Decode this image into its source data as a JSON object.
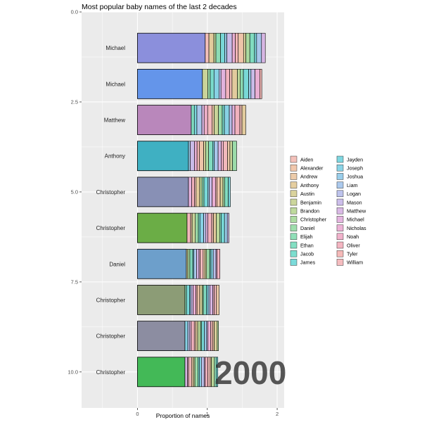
{
  "chart_data": {
    "type": "bar",
    "title": "Most popular baby names of the last 2 decades",
    "xlabel": "Proportion of names",
    "ylabel": "",
    "xlim": [
      -0.8,
      2.1
    ],
    "ylim": [
      0,
      11
    ],
    "x_ticks": [
      "0",
      "1",
      "2"
    ],
    "y_ticks": [
      "0.0",
      "2.5",
      "5.0",
      "7.5",
      "10.0"
    ],
    "legend_position": "right",
    "legend": [
      "Aiden",
      "Alexander",
      "Andrew",
      "Anthony",
      "Austin",
      "Benjamin",
      "Brandon",
      "Christopher",
      "Daniel",
      "Elijah",
      "Ethan",
      "Jacob",
      "James",
      "Jayden",
      "Joseph",
      "Joshua",
      "Liam",
      "Logan",
      "Mason",
      "Matthew",
      "Michael",
      "Nicholas",
      "Noah",
      "Oliver",
      "Tyler",
      "William"
    ],
    "bars": [
      {
        "rank": 1,
        "label": "Michael",
        "lead_value": 0.97,
        "total": 1.83,
        "color": "#8b8fdc"
      },
      {
        "rank": 2,
        "label": "Michael",
        "lead_value": 0.93,
        "total": 1.78,
        "color": "#6495ea"
      },
      {
        "rank": 3,
        "label": "Matthew",
        "lead_value": 0.77,
        "total": 1.55,
        "color": "#b987bb"
      },
      {
        "rank": 4,
        "label": "Anthony",
        "lead_value": 0.73,
        "total": 1.42,
        "color": "#3fb0c2"
      },
      {
        "rank": 5,
        "label": "Christopher",
        "lead_value": 0.73,
        "total": 1.33,
        "color": "#8890b5"
      },
      {
        "rank": 6,
        "label": "Christopher",
        "lead_value": 0.71,
        "total": 1.31,
        "color": "#6bad46"
      },
      {
        "rank": 7,
        "label": "Daniel",
        "lead_value": 0.7,
        "total": 1.18,
        "color": "#6d9fcb"
      },
      {
        "rank": 8,
        "label": "Christopher",
        "lead_value": 0.68,
        "total": 1.17,
        "color": "#8c9c76"
      },
      {
        "rank": 9,
        "label": "Christopher",
        "lead_value": 0.68,
        "total": 1.16,
        "color": "#8c8da1"
      },
      {
        "rank": 10,
        "label": "Christopher",
        "lead_value": 0.68,
        "total": 1.15,
        "color": "#43b957"
      }
    ],
    "annotation": "2000"
  }
}
